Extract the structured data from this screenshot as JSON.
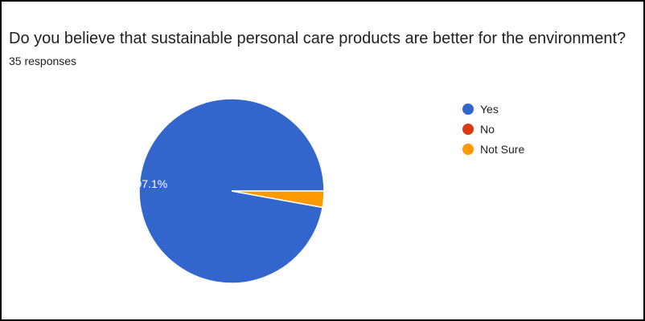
{
  "question": "Do you believe that sustainable personal care products are better for the environment?",
  "responses_label": "35 responses",
  "chart_data": {
    "type": "pie",
    "categories": [
      "Yes",
      "No",
      "Not Sure"
    ],
    "values": [
      34,
      0,
      1
    ],
    "percent_labels": [
      "97.1%",
      "",
      ""
    ],
    "colors": [
      "#3366cc",
      "#dc3912",
      "#ff9900"
    ],
    "legend_position": "right"
  }
}
